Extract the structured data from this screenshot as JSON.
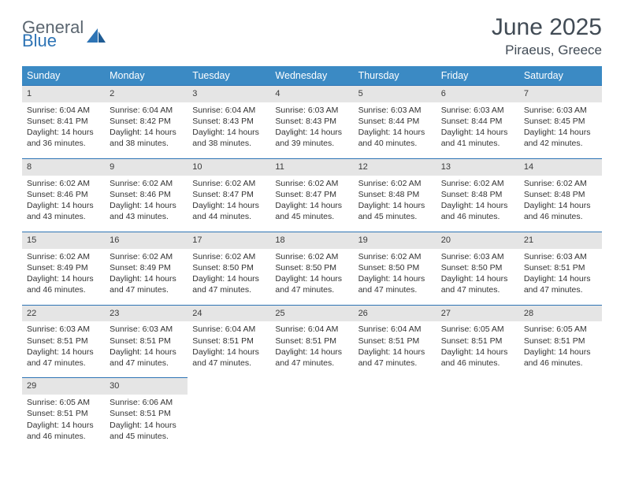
{
  "logo": {
    "general": "General",
    "blue": "Blue"
  },
  "title": "June 2025",
  "location": "Piraeus, Greece",
  "colors": {
    "header_bg": "#3b8ac4",
    "header_text": "#ffffff",
    "daynum_bg": "#e5e5e5",
    "daynum_border": "#2e74b5",
    "page_bg": "#ffffff",
    "text": "#333333",
    "title_text": "#414b55",
    "logo_gray": "#5b6670",
    "logo_blue": "#2e74b5"
  },
  "weekdays": [
    "Sunday",
    "Monday",
    "Tuesday",
    "Wednesday",
    "Thursday",
    "Friday",
    "Saturday"
  ],
  "weeks": [
    [
      {
        "n": "1",
        "sr": "Sunrise: 6:04 AM",
        "ss": "Sunset: 8:41 PM",
        "d1": "Daylight: 14 hours",
        "d2": "and 36 minutes."
      },
      {
        "n": "2",
        "sr": "Sunrise: 6:04 AM",
        "ss": "Sunset: 8:42 PM",
        "d1": "Daylight: 14 hours",
        "d2": "and 38 minutes."
      },
      {
        "n": "3",
        "sr": "Sunrise: 6:04 AM",
        "ss": "Sunset: 8:43 PM",
        "d1": "Daylight: 14 hours",
        "d2": "and 38 minutes."
      },
      {
        "n": "4",
        "sr": "Sunrise: 6:03 AM",
        "ss": "Sunset: 8:43 PM",
        "d1": "Daylight: 14 hours",
        "d2": "and 39 minutes."
      },
      {
        "n": "5",
        "sr": "Sunrise: 6:03 AM",
        "ss": "Sunset: 8:44 PM",
        "d1": "Daylight: 14 hours",
        "d2": "and 40 minutes."
      },
      {
        "n": "6",
        "sr": "Sunrise: 6:03 AM",
        "ss": "Sunset: 8:44 PM",
        "d1": "Daylight: 14 hours",
        "d2": "and 41 minutes."
      },
      {
        "n": "7",
        "sr": "Sunrise: 6:03 AM",
        "ss": "Sunset: 8:45 PM",
        "d1": "Daylight: 14 hours",
        "d2": "and 42 minutes."
      }
    ],
    [
      {
        "n": "8",
        "sr": "Sunrise: 6:02 AM",
        "ss": "Sunset: 8:46 PM",
        "d1": "Daylight: 14 hours",
        "d2": "and 43 minutes."
      },
      {
        "n": "9",
        "sr": "Sunrise: 6:02 AM",
        "ss": "Sunset: 8:46 PM",
        "d1": "Daylight: 14 hours",
        "d2": "and 43 minutes."
      },
      {
        "n": "10",
        "sr": "Sunrise: 6:02 AM",
        "ss": "Sunset: 8:47 PM",
        "d1": "Daylight: 14 hours",
        "d2": "and 44 minutes."
      },
      {
        "n": "11",
        "sr": "Sunrise: 6:02 AM",
        "ss": "Sunset: 8:47 PM",
        "d1": "Daylight: 14 hours",
        "d2": "and 45 minutes."
      },
      {
        "n": "12",
        "sr": "Sunrise: 6:02 AM",
        "ss": "Sunset: 8:48 PM",
        "d1": "Daylight: 14 hours",
        "d2": "and 45 minutes."
      },
      {
        "n": "13",
        "sr": "Sunrise: 6:02 AM",
        "ss": "Sunset: 8:48 PM",
        "d1": "Daylight: 14 hours",
        "d2": "and 46 minutes."
      },
      {
        "n": "14",
        "sr": "Sunrise: 6:02 AM",
        "ss": "Sunset: 8:48 PM",
        "d1": "Daylight: 14 hours",
        "d2": "and 46 minutes."
      }
    ],
    [
      {
        "n": "15",
        "sr": "Sunrise: 6:02 AM",
        "ss": "Sunset: 8:49 PM",
        "d1": "Daylight: 14 hours",
        "d2": "and 46 minutes."
      },
      {
        "n": "16",
        "sr": "Sunrise: 6:02 AM",
        "ss": "Sunset: 8:49 PM",
        "d1": "Daylight: 14 hours",
        "d2": "and 47 minutes."
      },
      {
        "n": "17",
        "sr": "Sunrise: 6:02 AM",
        "ss": "Sunset: 8:50 PM",
        "d1": "Daylight: 14 hours",
        "d2": "and 47 minutes."
      },
      {
        "n": "18",
        "sr": "Sunrise: 6:02 AM",
        "ss": "Sunset: 8:50 PM",
        "d1": "Daylight: 14 hours",
        "d2": "and 47 minutes."
      },
      {
        "n": "19",
        "sr": "Sunrise: 6:02 AM",
        "ss": "Sunset: 8:50 PM",
        "d1": "Daylight: 14 hours",
        "d2": "and 47 minutes."
      },
      {
        "n": "20",
        "sr": "Sunrise: 6:03 AM",
        "ss": "Sunset: 8:50 PM",
        "d1": "Daylight: 14 hours",
        "d2": "and 47 minutes."
      },
      {
        "n": "21",
        "sr": "Sunrise: 6:03 AM",
        "ss": "Sunset: 8:51 PM",
        "d1": "Daylight: 14 hours",
        "d2": "and 47 minutes."
      }
    ],
    [
      {
        "n": "22",
        "sr": "Sunrise: 6:03 AM",
        "ss": "Sunset: 8:51 PM",
        "d1": "Daylight: 14 hours",
        "d2": "and 47 minutes."
      },
      {
        "n": "23",
        "sr": "Sunrise: 6:03 AM",
        "ss": "Sunset: 8:51 PM",
        "d1": "Daylight: 14 hours",
        "d2": "and 47 minutes."
      },
      {
        "n": "24",
        "sr": "Sunrise: 6:04 AM",
        "ss": "Sunset: 8:51 PM",
        "d1": "Daylight: 14 hours",
        "d2": "and 47 minutes."
      },
      {
        "n": "25",
        "sr": "Sunrise: 6:04 AM",
        "ss": "Sunset: 8:51 PM",
        "d1": "Daylight: 14 hours",
        "d2": "and 47 minutes."
      },
      {
        "n": "26",
        "sr": "Sunrise: 6:04 AM",
        "ss": "Sunset: 8:51 PM",
        "d1": "Daylight: 14 hours",
        "d2": "and 47 minutes."
      },
      {
        "n": "27",
        "sr": "Sunrise: 6:05 AM",
        "ss": "Sunset: 8:51 PM",
        "d1": "Daylight: 14 hours",
        "d2": "and 46 minutes."
      },
      {
        "n": "28",
        "sr": "Sunrise: 6:05 AM",
        "ss": "Sunset: 8:51 PM",
        "d1": "Daylight: 14 hours",
        "d2": "and 46 minutes."
      }
    ],
    [
      {
        "n": "29",
        "sr": "Sunrise: 6:05 AM",
        "ss": "Sunset: 8:51 PM",
        "d1": "Daylight: 14 hours",
        "d2": "and 46 minutes."
      },
      {
        "n": "30",
        "sr": "Sunrise: 6:06 AM",
        "ss": "Sunset: 8:51 PM",
        "d1": "Daylight: 14 hours",
        "d2": "and 45 minutes."
      },
      null,
      null,
      null,
      null,
      null
    ]
  ]
}
